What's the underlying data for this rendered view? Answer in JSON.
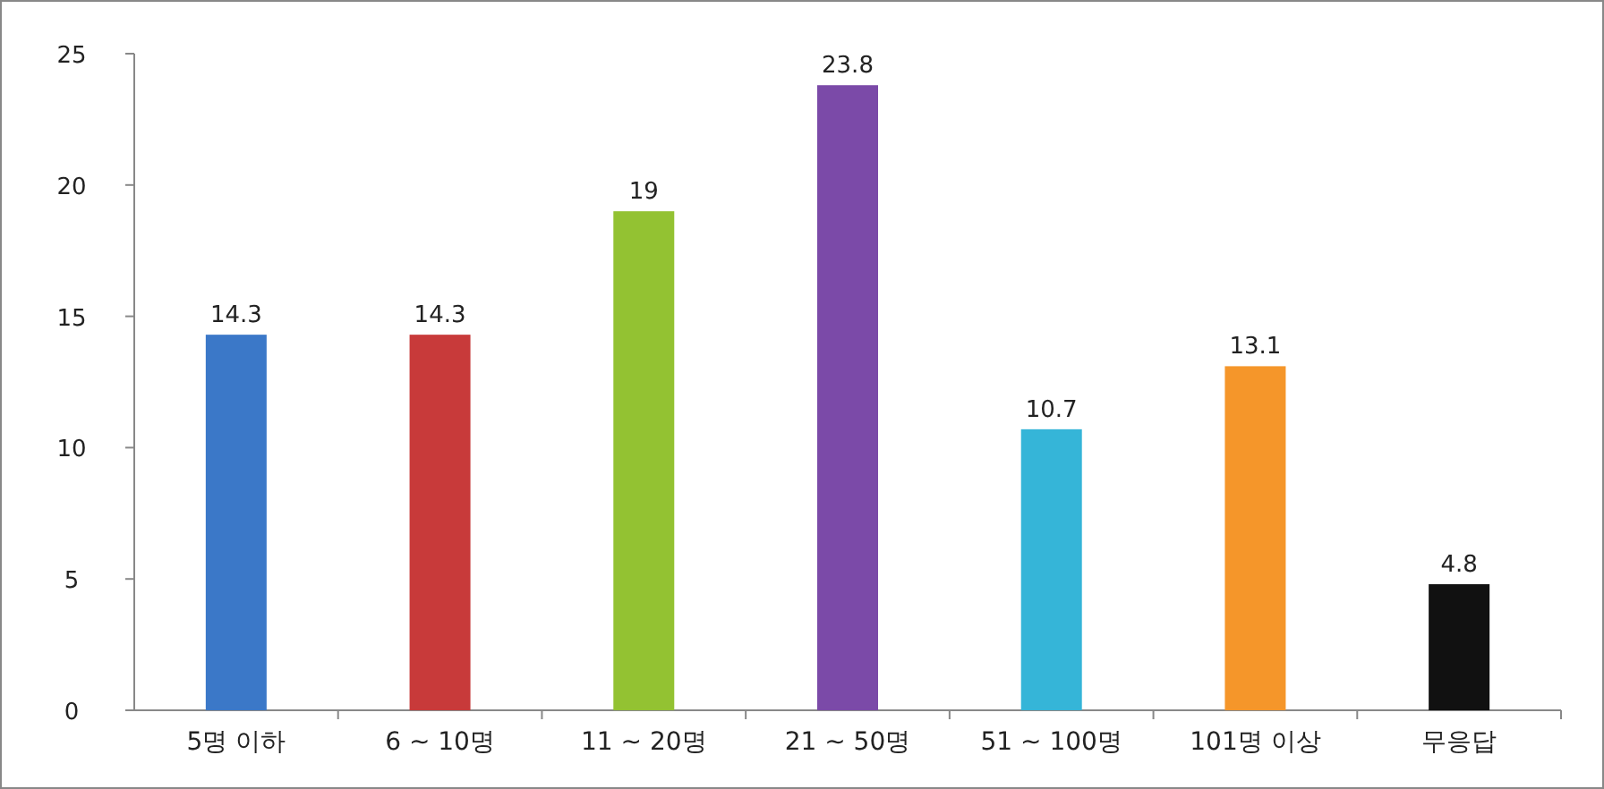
{
  "chart_data": {
    "type": "bar",
    "categories": [
      "5명 이하",
      "6 ~ 10명",
      "11 ~ 20명",
      "21 ~ 50명",
      "51 ~ 100명",
      "101명 이상",
      "무응답"
    ],
    "values": [
      14.3,
      14.3,
      19,
      23.8,
      10.7,
      13.1,
      4.8
    ],
    "colors": [
      "#3b78c8",
      "#c83a3a",
      "#93c232",
      "#7b4aa8",
      "#35b5d8",
      "#f5962a",
      "#111111"
    ],
    "ylim": [
      0,
      25
    ],
    "yticks": [
      0,
      5,
      10,
      15,
      20,
      25
    ],
    "data_labels": true
  }
}
